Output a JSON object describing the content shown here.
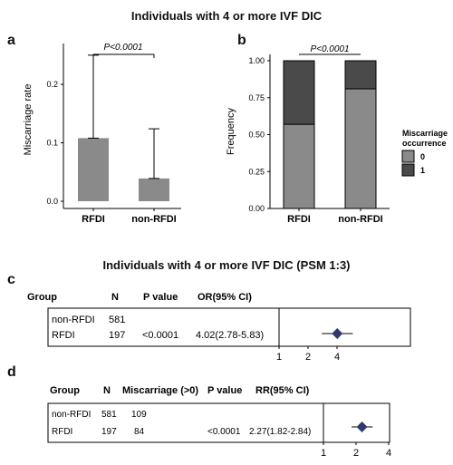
{
  "title_top": "Individuals with 4 or more IVF DIC",
  "title_mid": "Individuals with 4 or more IVF DIC (PSM 1:3)",
  "panel_letters": [
    "a",
    "b",
    "c",
    "d"
  ],
  "chart_data": [
    {
      "panel": "a",
      "type": "bar",
      "categories": [
        "RFDI",
        "non-RFDI"
      ],
      "values": [
        0.108,
        0.039
      ],
      "error_upper": [
        0.25,
        0.124
      ],
      "ylabel": "Miscarriage rate",
      "ylim": [
        0,
        0.27
      ],
      "yticks": [
        "0.0",
        "0.1",
        "0.2"
      ],
      "annotation": "P<0.0001",
      "bar_color": "#8a8a8a"
    },
    {
      "panel": "b",
      "type": "bar",
      "stacked": true,
      "categories": [
        "RFDI",
        "non-RFDI"
      ],
      "series": [
        {
          "name": "0",
          "values": [
            0.57,
            0.81
          ],
          "color": "#8a8a8a"
        },
        {
          "name": "1",
          "values": [
            0.43,
            0.19
          ],
          "color": "#4a4a4a"
        }
      ],
      "ylabel": "Frequency",
      "ylim": [
        0,
        1
      ],
      "yticks": [
        "0.00",
        "0.25",
        "0.50",
        "0.75",
        "1.00"
      ],
      "annotation": "P<0.0001",
      "legend_title": [
        "Miscarriage",
        "occurrence"
      ],
      "legend_position": "right"
    },
    {
      "panel": "c",
      "type": "table",
      "headers": [
        "Group",
        "N",
        "P value",
        "OR(95% CI)"
      ],
      "rows": [
        {
          "group": "non-RFDI",
          "n": "581",
          "p": "",
          "ci": ""
        },
        {
          "group": "RFDI",
          "n": "197",
          "p": "<0.0001",
          "ci": "4.02(2.78-5.83)"
        }
      ],
      "estimate": 4.02,
      "lower": 2.78,
      "upper": 5.83,
      "xticks": [
        "1",
        "2",
        "4"
      ],
      "marker_color": "#2e3a6b"
    },
    {
      "panel": "d",
      "type": "table",
      "headers": [
        "Group",
        "N",
        "Miscarriage (>0)",
        "P value",
        "RR(95% CI)"
      ],
      "rows": [
        {
          "group": "non-RFDI",
          "n": "581",
          "m": "109",
          "p": "",
          "ci": ""
        },
        {
          "group": "RFDI",
          "n": "197",
          "m": "84",
          "p": "<0.0001",
          "ci": "2.27(1.82-2.84)"
        }
      ],
      "estimate": 2.27,
      "lower": 1.82,
      "upper": 2.84,
      "xticks": [
        "1",
        "2",
        "4"
      ],
      "marker_color": "#2e3a6b"
    }
  ]
}
